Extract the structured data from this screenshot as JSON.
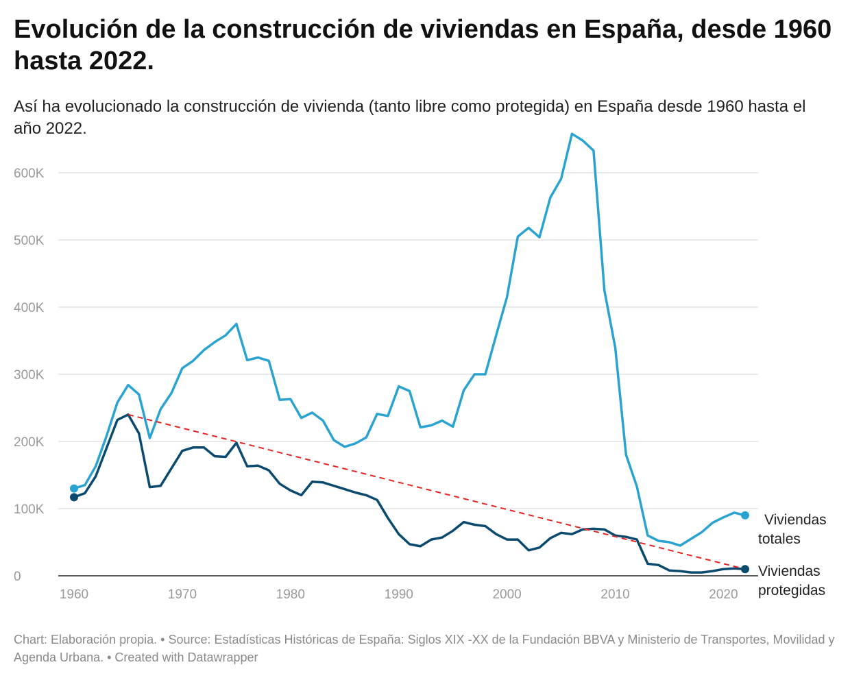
{
  "title": "Evolución de la construcción de viviendas en España, desde 1960 hasta 2022.",
  "subtitle": "Así ha evolucionado la construcción de vivienda (tanto libre como protegida) en España desde 1960 hasta el año 2022.",
  "footer": {
    "chart": "Chart: Elaboración propia.",
    "source": "Source: Estadísticas Históricas de España: Siglos XIX -XX de la Fundación BBVA y Ministerio de Transportes, Movilidad y Agenda Urbana.",
    "created": "Created with Datawrapper",
    "separator": " • "
  },
  "chart_data": {
    "type": "line",
    "title": "Evolución de la construcción de viviendas en España, desde 1960 hasta 2022.",
    "xlim": [
      1960,
      2022
    ],
    "ylim": [
      0,
      650000
    ],
    "x_ticks": [
      1960,
      1970,
      1980,
      1990,
      2000,
      2010,
      2020
    ],
    "x_tick_labels": [
      "1960",
      "1970",
      "1980",
      "1990",
      "2000",
      "2010",
      "2020"
    ],
    "y_ticks": [
      0,
      100000,
      200000,
      300000,
      400000,
      500000,
      600000
    ],
    "y_tick_labels": [
      "0",
      "100K",
      "200K",
      "300K",
      "400K",
      "500K",
      "600K"
    ],
    "grid": true,
    "legend": "direct labels at line ends (right)",
    "colors": {
      "totales": "#2aa3d0",
      "protegidas": "#0b4a6f",
      "trend": "#e8231f",
      "grid": "#e3e3e3",
      "axis": "#222222"
    },
    "x": [
      1960,
      1961,
      1962,
      1963,
      1964,
      1965,
      1966,
      1967,
      1968,
      1969,
      1970,
      1971,
      1972,
      1973,
      1974,
      1975,
      1976,
      1977,
      1978,
      1979,
      1980,
      1981,
      1982,
      1983,
      1984,
      1985,
      1986,
      1987,
      1988,
      1989,
      1990,
      1991,
      1992,
      1993,
      1994,
      1995,
      1996,
      1997,
      1998,
      1999,
      2000,
      2001,
      2002,
      2003,
      2004,
      2005,
      2006,
      2007,
      2008,
      2009,
      2010,
      2011,
      2012,
      2013,
      2014,
      2015,
      2016,
      2017,
      2018,
      2019,
      2020,
      2021,
      2022
    ],
    "series": [
      {
        "name": "Viviendas totales",
        "label_lines": [
          "Viviendas",
          "totales"
        ],
        "values": [
          130000,
          135000,
          163000,
          208000,
          258000,
          284000,
          270000,
          205000,
          248000,
          272000,
          309000,
          320000,
          336000,
          348000,
          358000,
          375000,
          321000,
          325000,
          320000,
          262000,
          263000,
          235000,
          243000,
          231000,
          202000,
          192000,
          197000,
          206000,
          241000,
          238000,
          282000,
          275000,
          221000,
          224000,
          231000,
          222000,
          276000,
          300000,
          300000,
          358000,
          415000,
          505000,
          518000,
          504000,
          563000,
          591000,
          658000,
          648000,
          633000,
          425000,
          340000,
          180000,
          133000,
          60000,
          52000,
          50000,
          45000,
          55000,
          65000,
          79000,
          87000,
          94000,
          90000
        ]
      },
      {
        "name": "Viviendas protegidas",
        "label_lines": [
          "Viviendas",
          "protegidas"
        ],
        "values": [
          117000,
          123000,
          148000,
          190000,
          232000,
          240000,
          212000,
          132000,
          134000,
          160000,
          186000,
          191000,
          191000,
          178000,
          177000,
          198000,
          163000,
          164000,
          157000,
          137000,
          127000,
          120000,
          140000,
          139000,
          134000,
          129000,
          124000,
          120000,
          113000,
          86000,
          62000,
          47000,
          44000,
          54000,
          57000,
          67000,
          80000,
          76000,
          74000,
          62000,
          54000,
          54000,
          38000,
          42000,
          56000,
          64000,
          62000,
          69000,
          70000,
          69000,
          60000,
          58000,
          54000,
          18000,
          16000,
          8000,
          7000,
          5000,
          5000,
          7000,
          10000,
          11000,
          10000
        ]
      },
      {
        "name": "",
        "style": "dashed",
        "x": [
          1965,
          2022
        ],
        "values": [
          240000,
          10000
        ]
      }
    ]
  }
}
